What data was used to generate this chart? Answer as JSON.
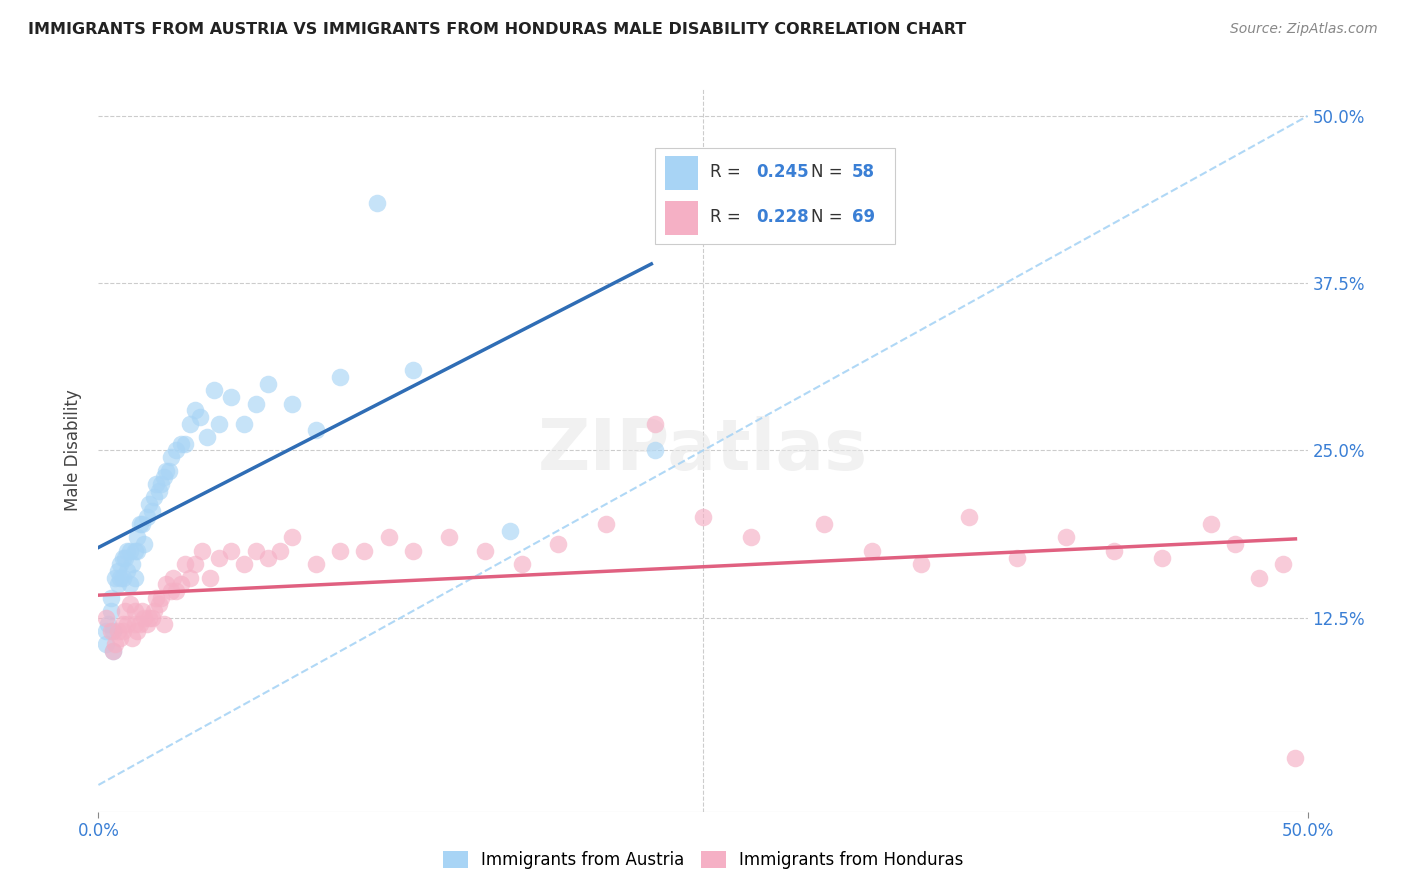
{
  "title": "IMMIGRANTS FROM AUSTRIA VS IMMIGRANTS FROM HONDURAS MALE DISABILITY CORRELATION CHART",
  "source": "Source: ZipAtlas.com",
  "ylabel": "Male Disability",
  "xlim": [
    0.0,
    0.5
  ],
  "ylim": [
    -0.02,
    0.52
  ],
  "xtick_vals_bottom": [
    0.0,
    0.5
  ],
  "xtick_labels_bottom": [
    "0.0%",
    "50.0%"
  ],
  "ytick_vals": [
    0.125,
    0.25,
    0.375,
    0.5
  ],
  "ytick_labels_right": [
    "12.5%",
    "25.0%",
    "37.5%",
    "50.0%"
  ],
  "color_austria": "#a8d4f5",
  "color_honduras": "#f5b0c5",
  "line_austria": "#2f6db5",
  "line_honduras": "#e06080",
  "diag_color": "#a8d4f5",
  "R_austria": 0.245,
  "N_austria": 58,
  "R_honduras": 0.228,
  "N_honduras": 69,
  "legend_label_austria": "Immigrants from Austria",
  "legend_label_honduras": "Immigrants from Honduras",
  "austria_x": [
    0.003,
    0.003,
    0.004,
    0.005,
    0.005,
    0.006,
    0.006,
    0.007,
    0.008,
    0.008,
    0.009,
    0.009,
    0.01,
    0.01,
    0.011,
    0.012,
    0.012,
    0.013,
    0.013,
    0.014,
    0.015,
    0.015,
    0.016,
    0.016,
    0.017,
    0.018,
    0.019,
    0.02,
    0.021,
    0.022,
    0.023,
    0.024,
    0.025,
    0.026,
    0.027,
    0.028,
    0.029,
    0.03,
    0.032,
    0.034,
    0.036,
    0.038,
    0.04,
    0.042,
    0.045,
    0.048,
    0.05,
    0.055,
    0.06,
    0.065,
    0.07,
    0.08,
    0.09,
    0.1,
    0.115,
    0.13,
    0.17,
    0.23
  ],
  "austria_y": [
    0.105,
    0.115,
    0.12,
    0.13,
    0.14,
    0.1,
    0.115,
    0.155,
    0.15,
    0.16,
    0.155,
    0.165,
    0.155,
    0.17,
    0.17,
    0.16,
    0.175,
    0.15,
    0.175,
    0.165,
    0.155,
    0.175,
    0.175,
    0.185,
    0.195,
    0.195,
    0.18,
    0.2,
    0.21,
    0.205,
    0.215,
    0.225,
    0.22,
    0.225,
    0.23,
    0.235,
    0.235,
    0.245,
    0.25,
    0.255,
    0.255,
    0.27,
    0.28,
    0.275,
    0.26,
    0.295,
    0.27,
    0.29,
    0.27,
    0.285,
    0.3,
    0.285,
    0.265,
    0.305,
    0.435,
    0.31,
    0.19,
    0.25
  ],
  "honduras_x": [
    0.003,
    0.005,
    0.006,
    0.007,
    0.008,
    0.009,
    0.01,
    0.01,
    0.011,
    0.012,
    0.013,
    0.014,
    0.015,
    0.015,
    0.016,
    0.017,
    0.018,
    0.019,
    0.02,
    0.021,
    0.022,
    0.023,
    0.024,
    0.025,
    0.026,
    0.027,
    0.028,
    0.03,
    0.031,
    0.032,
    0.034,
    0.036,
    0.038,
    0.04,
    0.043,
    0.046,
    0.05,
    0.055,
    0.06,
    0.065,
    0.07,
    0.075,
    0.08,
    0.09,
    0.1,
    0.11,
    0.12,
    0.13,
    0.145,
    0.16,
    0.175,
    0.19,
    0.21,
    0.23,
    0.25,
    0.27,
    0.3,
    0.32,
    0.34,
    0.36,
    0.38,
    0.4,
    0.42,
    0.44,
    0.46,
    0.47,
    0.48,
    0.49,
    0.495
  ],
  "honduras_y": [
    0.125,
    0.115,
    0.1,
    0.105,
    0.115,
    0.11,
    0.115,
    0.12,
    0.13,
    0.12,
    0.135,
    0.11,
    0.12,
    0.13,
    0.115,
    0.12,
    0.13,
    0.125,
    0.12,
    0.125,
    0.125,
    0.13,
    0.14,
    0.135,
    0.14,
    0.12,
    0.15,
    0.145,
    0.155,
    0.145,
    0.15,
    0.165,
    0.155,
    0.165,
    0.175,
    0.155,
    0.17,
    0.175,
    0.165,
    0.175,
    0.17,
    0.175,
    0.185,
    0.165,
    0.175,
    0.175,
    0.185,
    0.175,
    0.185,
    0.175,
    0.165,
    0.18,
    0.195,
    0.27,
    0.2,
    0.185,
    0.195,
    0.175,
    0.165,
    0.2,
    0.17,
    0.185,
    0.175,
    0.17,
    0.195,
    0.18,
    0.155,
    0.165,
    0.02
  ]
}
